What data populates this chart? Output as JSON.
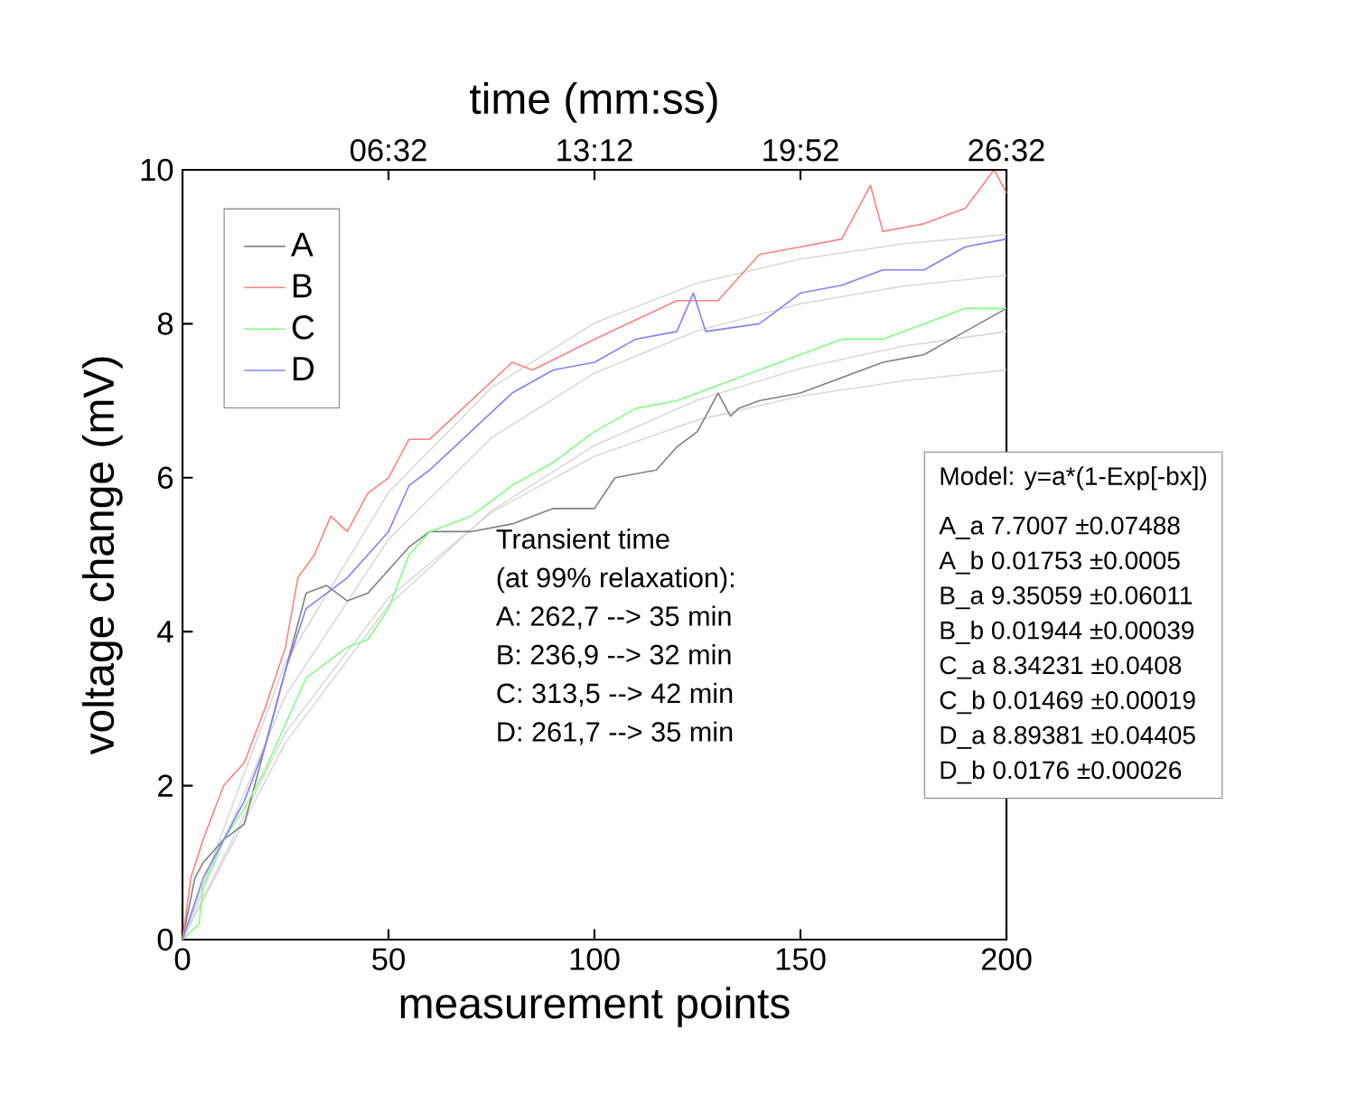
{
  "chart_data": {
    "type": "line",
    "xlabel": "measurement points",
    "ylabel": "voltage change (mV)",
    "x2label": "time (mm:ss)",
    "xlim": [
      0,
      200
    ],
    "xticks": [
      0,
      50,
      100,
      150,
      200
    ],
    "ylim": [
      0,
      10
    ],
    "yticks": [
      0,
      2,
      4,
      6,
      8,
      10
    ],
    "x2lim": [
      -8,
      1592
    ],
    "x2ticks": [
      {
        "value": 392,
        "label": "06:32"
      },
      {
        "value": 792,
        "label": "13:12"
      },
      {
        "value": 1192,
        "label": "19:52"
      },
      {
        "value": 1592,
        "label": "26:32"
      }
    ],
    "legend": "top left",
    "grid": false,
    "marker": "none",
    "line_style": "solid",
    "series": [
      {
        "name": "A",
        "color": "#808080",
        "x": [
          0,
          3,
          5,
          10,
          15,
          20,
          25,
          30,
          35,
          40,
          45,
          50,
          55,
          60,
          70,
          80,
          90,
          100,
          105,
          115,
          120,
          125,
          130,
          133,
          135,
          140,
          150,
          160,
          170,
          180,
          190,
          200
        ],
        "values": [
          0,
          0.8,
          1.0,
          1.3,
          1.5,
          2.5,
          3.5,
          4.5,
          4.6,
          4.4,
          4.5,
          4.8,
          5.1,
          5.3,
          5.3,
          5.4,
          5.6,
          5.6,
          6.0,
          6.1,
          6.4,
          6.6,
          7.1,
          6.8,
          6.9,
          7.0,
          7.1,
          7.3,
          7.5,
          7.6,
          7.9,
          8.2
        ]
      },
      {
        "name": "B",
        "color": "#ff8080",
        "x": [
          0,
          2,
          5,
          10,
          15,
          20,
          25,
          28,
          32,
          36,
          40,
          45,
          50,
          55,
          60,
          70,
          80,
          85,
          100,
          120,
          130,
          140,
          150,
          160,
          167,
          170,
          180,
          190,
          197,
          200
        ],
        "values": [
          0,
          0.8,
          1.3,
          2.0,
          2.3,
          3.0,
          3.8,
          4.7,
          5.0,
          5.5,
          5.3,
          5.8,
          6.0,
          6.5,
          6.5,
          7.0,
          7.5,
          7.4,
          7.8,
          8.3,
          8.3,
          8.9,
          9.0,
          9.1,
          9.8,
          9.2,
          9.3,
          9.5,
          10.0,
          9.7
        ]
      },
      {
        "name": "C",
        "color": "#80ff80",
        "x": [
          0,
          4,
          5,
          10,
          15,
          20,
          25,
          30,
          35,
          40,
          45,
          50,
          55,
          60,
          70,
          80,
          90,
          100,
          110,
          120,
          130,
          140,
          150,
          160,
          170,
          180,
          190,
          200
        ],
        "values": [
          0,
          0.2,
          0.7,
          1.3,
          1.7,
          2.2,
          2.8,
          3.4,
          3.6,
          3.8,
          3.9,
          4.3,
          5.0,
          5.3,
          5.5,
          5.9,
          6.2,
          6.6,
          6.9,
          7.0,
          7.2,
          7.4,
          7.6,
          7.8,
          7.8,
          8.0,
          8.2,
          8.2
        ]
      },
      {
        "name": "D",
        "color": "#8080ff",
        "x": [
          0,
          5,
          10,
          15,
          20,
          25,
          30,
          35,
          40,
          45,
          50,
          55,
          60,
          70,
          80,
          90,
          100,
          110,
          120,
          124,
          127,
          140,
          150,
          160,
          170,
          180,
          190,
          200
        ],
        "values": [
          0,
          0.8,
          1.3,
          1.8,
          2.5,
          3.5,
          4.3,
          4.5,
          4.7,
          5.0,
          5.3,
          5.9,
          6.1,
          6.6,
          7.1,
          7.4,
          7.5,
          7.8,
          7.9,
          8.4,
          7.9,
          8.0,
          8.4,
          8.5,
          8.7,
          8.7,
          9.0,
          9.1
        ]
      },
      {
        "color": "#d9d9d9",
        "x": [
          0,
          25,
          50,
          75,
          100,
          125,
          150,
          175,
          200
        ],
        "values": [
          0,
          2.69,
          4.44,
          5.55,
          6.28,
          6.75,
          7.06,
          7.26,
          7.4
        ]
      },
      {
        "color": "#d9d9d9",
        "x": [
          0,
          25,
          50,
          75,
          100,
          125,
          150,
          175,
          200
        ],
        "values": [
          0,
          3.6,
          5.81,
          7.17,
          8.01,
          8.53,
          8.84,
          9.04,
          9.16
        ]
      },
      {
        "color": "#d9d9d9",
        "x": [
          0,
          25,
          50,
          75,
          100,
          125,
          150,
          175,
          200
        ],
        "values": [
          0,
          2.56,
          4.34,
          5.57,
          6.42,
          7.01,
          7.42,
          7.71,
          7.9
        ]
      },
      {
        "color": "#d9d9d9",
        "x": [
          0,
          25,
          50,
          75,
          100,
          125,
          150,
          175,
          200
        ],
        "values": [
          0,
          3.17,
          5.2,
          6.52,
          7.36,
          7.91,
          8.26,
          8.49,
          8.63
        ]
      }
    ],
    "annotations": [
      "Transient time",
      "(at 99% relaxation):",
      "A: 262,7 --> 35 min",
      "B: 236,9 --> 32 min",
      "C: 313,5 --> 42 min",
      "D: 261,7 --> 35 min",
      "Model: y=a*(1-Exp[-bx])",
      "A_a 7.7007 ±0.07488",
      "A_b 0.01753 ±0.0005",
      "B_a 9.35059 ±0.06011",
      "B_b 0.01944 ±0.00039",
      "C_a 8.34231 ±0.0408",
      "C_b 0.01469 ±0.00019",
      "D_a 8.89381 ±0.04405",
      "D_b 0.0176 ±0.00026"
    ]
  }
}
